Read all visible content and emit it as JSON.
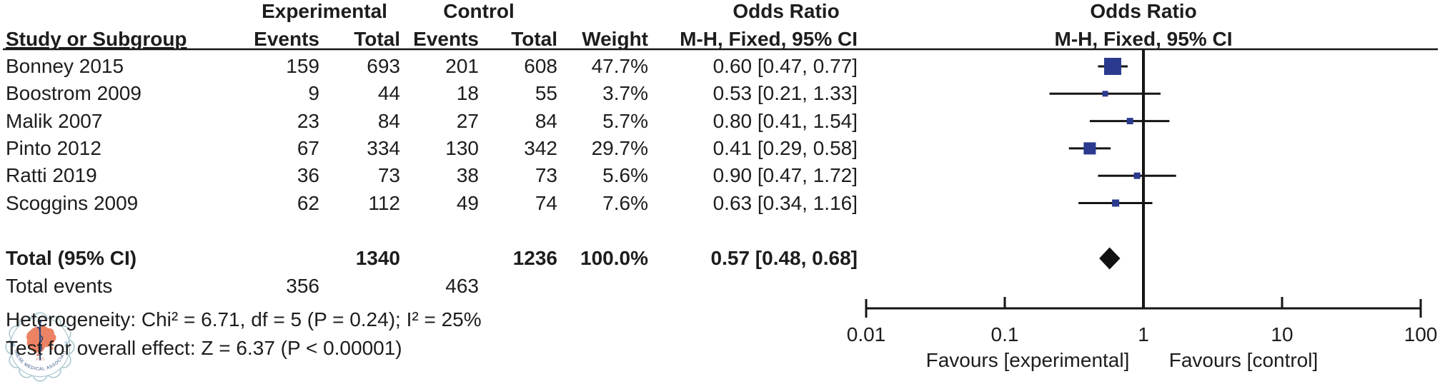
{
  "table": {
    "group_headers": {
      "experimental": "Experimental",
      "control": "Control"
    },
    "headers": {
      "study": "Study or Subgroup",
      "events": "Events",
      "total": "Total",
      "weight": "Weight",
      "odds_ratio": "Odds Ratio",
      "method_ci": "M-H, Fixed, 95% CI"
    },
    "total_label": "Total (95% CI)",
    "total_events_label": "Total events",
    "heterogeneity_line": "Heterogeneity: Chi² = 6.71, df = 5 (P = 0.24); I² = 25%",
    "overall_effect_line": "Test for overall effect: Z = 6.37 (P < 0.00001)"
  },
  "plot": {
    "header_line1": "Odds Ratio",
    "header_line2": "M-H, Fixed, 95% CI",
    "favours_left": "Favours [experimental]",
    "favours_right": "Favours [control]",
    "square_color": "#2b3a8e",
    "diamond_color": "#111111",
    "line_color": "#151515",
    "text_color": "#1d1d1d"
  },
  "logo": {
    "arc_text": "CHINESE MEDICAL ASSOCIATION",
    "year": "1915",
    "ring_color": "#a9c7cf",
    "map_color": "#ec7c5c",
    "text_color": "#26477d",
    "staff_color": "#1c3f77"
  },
  "chart_data": {
    "type": "forest",
    "effect_measure": "Odds Ratio",
    "method": "M-H, Fixed, 95% CI",
    "x_scale": "log10",
    "x_ticks": [
      0.01,
      0.1,
      1,
      10,
      100
    ],
    "x_tick_labels": [
      "0.01",
      "0.1",
      "1",
      "10",
      "100"
    ],
    "favours": [
      "Favours [experimental]",
      "Favours [control]"
    ],
    "studies": [
      {
        "name": "Bonney 2015",
        "exp_events": 159,
        "exp_total": 693,
        "ctrl_events": 201,
        "ctrl_total": 608,
        "weight_pct": 47.7,
        "or": 0.6,
        "ci_low": 0.47,
        "ci_high": 0.77
      },
      {
        "name": "Boostrom 2009",
        "exp_events": 9,
        "exp_total": 44,
        "ctrl_events": 18,
        "ctrl_total": 55,
        "weight_pct": 3.7,
        "or": 0.53,
        "ci_low": 0.21,
        "ci_high": 1.33
      },
      {
        "name": "Malik 2007",
        "exp_events": 23,
        "exp_total": 84,
        "ctrl_events": 27,
        "ctrl_total": 84,
        "weight_pct": 5.7,
        "or": 0.8,
        "ci_low": 0.41,
        "ci_high": 1.54
      },
      {
        "name": "Pinto 2012",
        "exp_events": 67,
        "exp_total": 334,
        "ctrl_events": 130,
        "ctrl_total": 342,
        "weight_pct": 29.7,
        "or": 0.41,
        "ci_low": 0.29,
        "ci_high": 0.58
      },
      {
        "name": "Ratti 2019",
        "exp_events": 36,
        "exp_total": 73,
        "ctrl_events": 38,
        "ctrl_total": 73,
        "weight_pct": 5.6,
        "or": 0.9,
        "ci_low": 0.47,
        "ci_high": 1.72
      },
      {
        "name": "Scoggins 2009",
        "exp_events": 62,
        "exp_total": 112,
        "ctrl_events": 49,
        "ctrl_total": 74,
        "weight_pct": 7.6,
        "or": 0.63,
        "ci_low": 0.34,
        "ci_high": 1.16
      }
    ],
    "total": {
      "label": "Total (95% CI)",
      "exp_total": 1340,
      "ctrl_total": 1236,
      "weight_pct": 100.0,
      "or": 0.57,
      "ci_low": 0.48,
      "ci_high": 0.68
    },
    "total_events": {
      "experimental": 356,
      "control": 463
    },
    "heterogeneity": "Chi² = 6.71, df = 5 (P = 0.24); I² = 25%",
    "overall_effect": "Z = 6.37 (P < 0.00001)"
  }
}
